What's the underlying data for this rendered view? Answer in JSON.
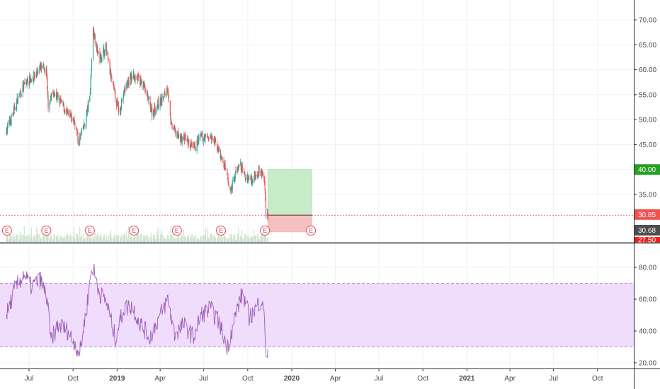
{
  "chart_data": [
    {
      "type": "candlestick",
      "pane": "price",
      "ylim": [
        27.5,
        72.5
      ],
      "y_ticks": [
        "35.00",
        "40.00",
        "45.00",
        "50.00",
        "55.00",
        "60.00",
        "65.00",
        "70.00"
      ],
      "grid": true,
      "colors": {
        "up": "#26a69a",
        "down": "#ef5350",
        "volume": "#cfe3cf"
      },
      "price_path": [
        [
          "2018-05-15",
          48
        ],
        [
          "2018-05-28",
          51
        ],
        [
          "2018-06-10",
          55
        ],
        [
          "2018-06-25",
          57.5
        ],
        [
          "2018-07-10",
          58.5
        ],
        [
          "2018-07-25",
          60.5
        ],
        [
          "2018-08-06",
          59.5
        ],
        [
          "2018-08-10",
          53
        ],
        [
          "2018-08-20",
          55.5
        ],
        [
          "2018-09-05",
          53.5
        ],
        [
          "2018-09-20",
          51
        ],
        [
          "2018-10-05",
          49.5
        ],
        [
          "2018-10-12",
          45.5
        ],
        [
          "2018-10-25",
          49
        ],
        [
          "2018-11-05",
          54.5
        ],
        [
          "2018-11-12",
          68
        ],
        [
          "2018-11-25",
          62
        ],
        [
          "2018-12-08",
          64.5
        ],
        [
          "2018-12-20",
          58
        ],
        [
          "2019-01-05",
          51.5
        ],
        [
          "2019-01-20",
          57
        ],
        [
          "2019-02-05",
          59
        ],
        [
          "2019-02-25",
          57
        ],
        [
          "2019-03-15",
          51.5
        ],
        [
          "2019-04-01",
          53.5
        ],
        [
          "2019-04-10",
          55
        ],
        [
          "2019-04-17",
          56.5
        ],
        [
          "2019-04-23",
          49
        ],
        [
          "2019-05-10",
          46.5
        ],
        [
          "2019-05-25",
          46
        ],
        [
          "2019-06-10",
          44
        ],
        [
          "2019-06-25",
          46.5
        ],
        [
          "2019-07-15",
          46.5
        ],
        [
          "2019-07-30",
          44.5
        ],
        [
          "2019-08-15",
          40
        ],
        [
          "2019-08-25",
          35.5
        ],
        [
          "2019-09-05",
          39
        ],
        [
          "2019-09-15",
          41
        ],
        [
          "2019-09-25",
          38.5
        ],
        [
          "2019-10-10",
          38
        ],
        [
          "2019-10-25",
          40
        ],
        [
          "2019-11-01",
          39
        ],
        [
          "2019-11-05",
          37.5
        ],
        [
          "2019-11-08",
          31.5
        ],
        [
          "2019-11-12",
          30.9
        ]
      ],
      "events": [
        "E",
        "E",
        "E",
        "E",
        "E",
        "E",
        "E",
        "E"
      ],
      "position": {
        "target": "40.00",
        "entry": "30.85",
        "stop": "27.50",
        "current": "30.68"
      },
      "price_tags": [
        "40.00",
        "30.85",
        "30.68",
        "27.50"
      ]
    },
    {
      "type": "line",
      "pane": "rsi",
      "ylim": [
        17,
        88
      ],
      "y_ticks": [
        "20.00",
        "40.00",
        "60.00",
        "80.00"
      ],
      "band": [
        30,
        70
      ],
      "colors": {
        "line": "#9c5fb8",
        "band": "#f0dcfb",
        "band_line": "#b08ccd"
      },
      "path": [
        [
          "2018-05-15",
          50
        ],
        [
          "2018-06-01",
          66
        ],
        [
          "2018-06-20",
          76
        ],
        [
          "2018-07-05",
          68
        ],
        [
          "2018-07-25",
          72
        ],
        [
          "2018-08-08",
          60
        ],
        [
          "2018-08-15",
          34
        ],
        [
          "2018-09-01",
          44
        ],
        [
          "2018-09-20",
          40
        ],
        [
          "2018-10-05",
          32
        ],
        [
          "2018-10-15",
          26
        ],
        [
          "2018-10-30",
          56
        ],
        [
          "2018-11-10",
          82
        ],
        [
          "2018-11-25",
          64
        ],
        [
          "2018-12-10",
          58
        ],
        [
          "2018-12-28",
          36
        ],
        [
          "2019-01-15",
          54
        ],
        [
          "2019-02-01",
          56
        ],
        [
          "2019-02-20",
          44
        ],
        [
          "2019-03-10",
          36
        ],
        [
          "2019-04-01",
          50
        ],
        [
          "2019-04-17",
          60
        ],
        [
          "2019-05-01",
          38
        ],
        [
          "2019-05-20",
          44
        ],
        [
          "2019-06-10",
          36
        ],
        [
          "2019-06-25",
          50
        ],
        [
          "2019-07-15",
          54
        ],
        [
          "2019-08-01",
          46
        ],
        [
          "2019-08-20",
          30
        ],
        [
          "2019-09-05",
          50
        ],
        [
          "2019-09-20",
          64
        ],
        [
          "2019-10-05",
          48
        ],
        [
          "2019-10-25",
          58
        ],
        [
          "2019-11-01",
          60
        ],
        [
          "2019-11-06",
          40
        ],
        [
          "2019-11-08",
          26
        ],
        [
          "2019-11-12",
          25
        ]
      ]
    }
  ],
  "x_axis": {
    "start": "2018-05-15",
    "end": "2021-12-31",
    "labels": [
      {
        "text": "Jul",
        "date": "2018-07-01",
        "bold": false
      },
      {
        "text": "Oct",
        "date": "2018-10-01",
        "bold": false
      },
      {
        "text": "2019",
        "date": "2019-01-01",
        "bold": true
      },
      {
        "text": "Apr",
        "date": "2019-04-01",
        "bold": false
      },
      {
        "text": "Jul",
        "date": "2019-07-01",
        "bold": false
      },
      {
        "text": "Oct",
        "date": "2019-10-01",
        "bold": false
      },
      {
        "text": "2020",
        "date": "2020-01-01",
        "bold": true
      },
      {
        "text": "Apr",
        "date": "2020-04-01",
        "bold": false
      },
      {
        "text": "Jul",
        "date": "2020-07-01",
        "bold": false
      },
      {
        "text": "Oct",
        "date": "2020-10-01",
        "bold": false
      },
      {
        "text": "2021",
        "date": "2021-01-01",
        "bold": true
      },
      {
        "text": "Apr",
        "date": "2021-04-01",
        "bold": false
      },
      {
        "text": "Jul",
        "date": "2021-07-01",
        "bold": false
      },
      {
        "text": "Oct",
        "date": "2021-10-01",
        "bold": false
      }
    ]
  },
  "price_tag_colors": {
    "target": "#26a026",
    "entry": "#ef5350",
    "current": "#4d4d4d",
    "stop": "#ef2020"
  }
}
